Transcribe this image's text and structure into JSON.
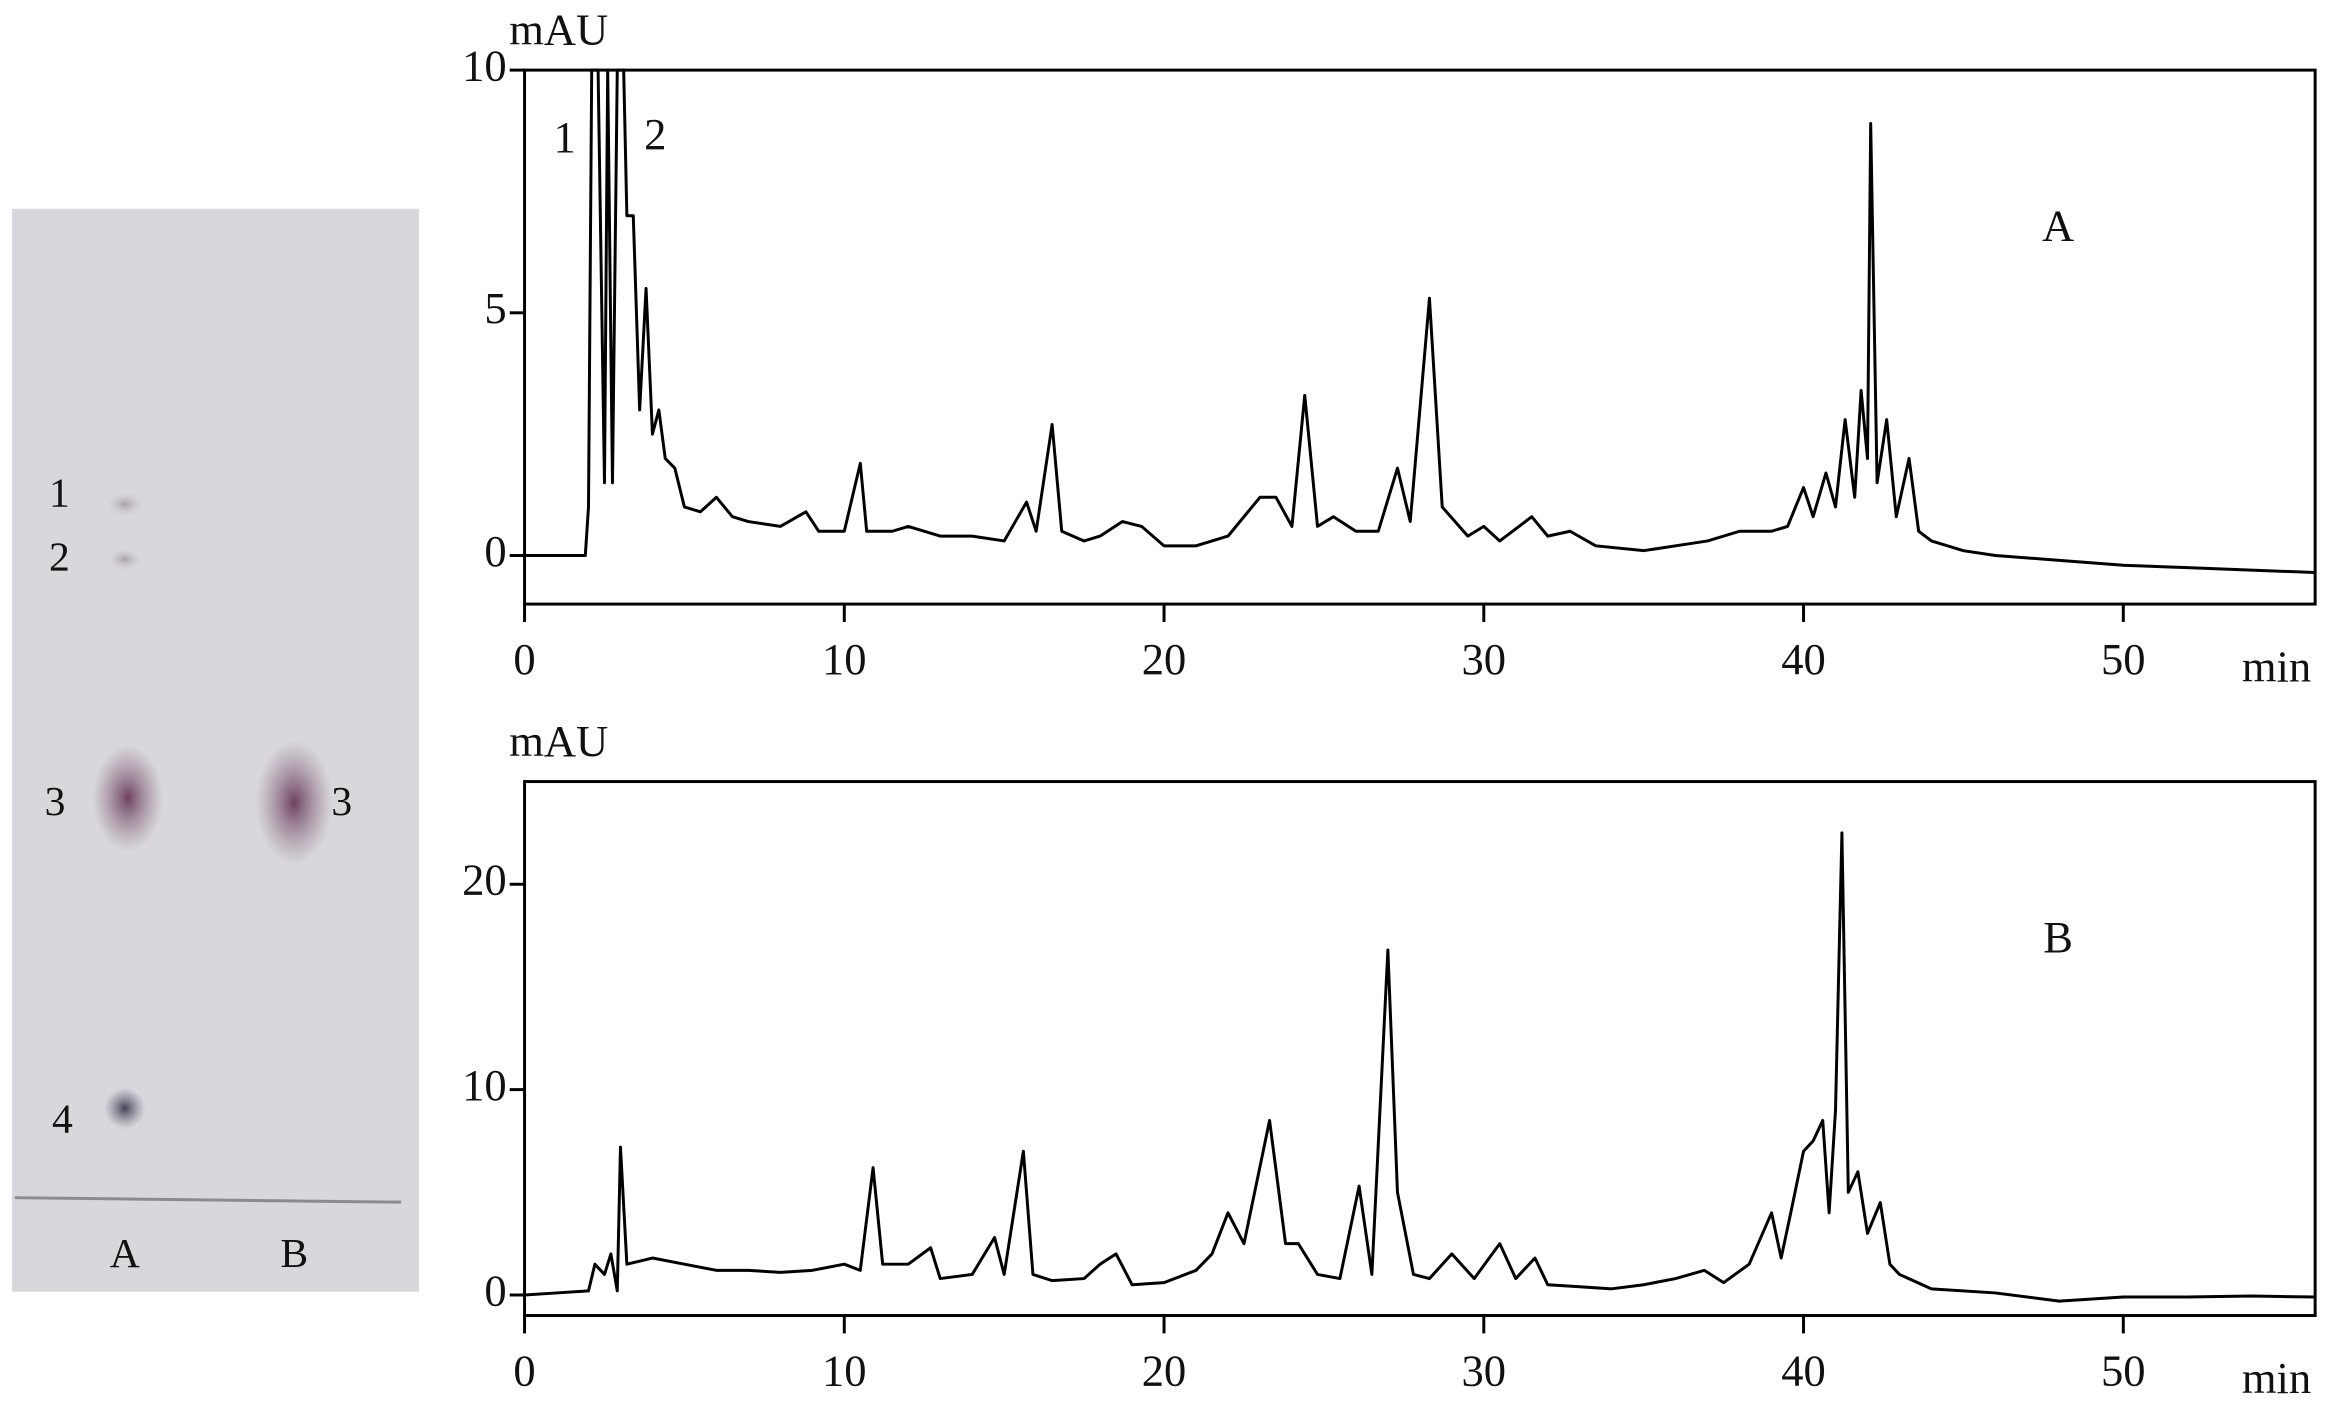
{
  "chart_data": [
    {
      "type": "line",
      "panel_label": "A",
      "y_label": "mAU",
      "x_label": "min",
      "annotations": [
        "1",
        "2"
      ],
      "color": "#000000",
      "xlim": [
        0,
        56
      ],
      "ylim": [
        -1,
        10
      ],
      "xticks": [
        0,
        10,
        20,
        30,
        40,
        50
      ],
      "yticks": [
        0,
        5,
        10
      ],
      "x": [
        0,
        1.9,
        2.0,
        2.1,
        2.3,
        2.5,
        2.6,
        2.75,
        2.9,
        3.1,
        3.2,
        3.4,
        3.6,
        3.8,
        4.0,
        4.2,
        4.4,
        4.7,
        5.0,
        5.5,
        6,
        6.5,
        7,
        8,
        8.8,
        9.2,
        10,
        10.5,
        10.7,
        11.5,
        12,
        13,
        14,
        15,
        15.7,
        16,
        16.5,
        16.8,
        17.5,
        18,
        18.7,
        19.3,
        20,
        21,
        22,
        23,
        23.5,
        24,
        24.4,
        24.8,
        25.3,
        26,
        26.7,
        27.3,
        27.7,
        28.3,
        28.7,
        29.5,
        30,
        30.5,
        31.5,
        32,
        32.7,
        33.5,
        35,
        36,
        37,
        38,
        39,
        39.5,
        40,
        40.3,
        40.7,
        41,
        41.3,
        41.6,
        41.8,
        42.0,
        42.1,
        42.3,
        42.6,
        42.9,
        43.3,
        43.6,
        44,
        45,
        46,
        48,
        50,
        52,
        54,
        56
      ],
      "values": [
        0,
        0,
        1,
        10,
        10,
        1.5,
        10,
        1.5,
        10,
        10,
        7,
        7,
        3,
        5.5,
        2.5,
        3,
        2,
        1.8,
        1,
        0.9,
        1.2,
        0.8,
        0.7,
        0.6,
        0.9,
        0.5,
        0.5,
        1.9,
        0.5,
        0.5,
        0.6,
        0.4,
        0.4,
        0.3,
        1.1,
        0.5,
        2.7,
        0.5,
        0.3,
        0.4,
        0.7,
        0.6,
        0.2,
        0.2,
        0.4,
        1.2,
        1.2,
        0.6,
        3.3,
        0.6,
        0.8,
        0.5,
        0.5,
        1.8,
        0.7,
        5.3,
        1.0,
        0.4,
        0.6,
        0.3,
        0.8,
        0.4,
        0.5,
        0.2,
        0.1,
        0.2,
        0.3,
        0.5,
        0.5,
        0.6,
        1.4,
        0.8,
        1.7,
        1.0,
        2.8,
        1.2,
        3.4,
        2.0,
        8.9,
        1.5,
        2.8,
        0.8,
        2.0,
        0.5,
        0.3,
        0.1,
        0.0,
        -0.1,
        -0.2,
        -0.25,
        -0.3,
        -0.35
      ]
    },
    {
      "type": "line",
      "panel_label": "B",
      "y_label": "mAU",
      "x_label": "min",
      "color": "#000000",
      "xlim": [
        0,
        56
      ],
      "ylim": [
        -1,
        25
      ],
      "xticks": [
        0,
        10,
        20,
        30,
        40,
        50
      ],
      "yticks": [
        0,
        10,
        20
      ],
      "x": [
        0,
        1,
        2,
        2.2,
        2.5,
        2.7,
        2.9,
        3.0,
        3.2,
        4,
        5,
        6,
        7,
        8,
        9,
        10,
        10.5,
        10.9,
        11.2,
        12,
        12.7,
        13,
        14,
        14.7,
        15,
        15.6,
        15.9,
        16.5,
        17.5,
        18,
        18.5,
        19,
        20,
        21,
        21.5,
        22,
        22.5,
        23.3,
        23.8,
        24.2,
        24.8,
        25.5,
        26.1,
        26.5,
        27.0,
        27.3,
        27.8,
        28.3,
        29,
        29.7,
        30.5,
        31,
        31.6,
        32,
        33,
        34,
        35,
        36,
        36.9,
        37.5,
        38.3,
        39,
        39.3,
        39.6,
        40,
        40.3,
        40.6,
        40.8,
        41.0,
        41.2,
        41.4,
        41.7,
        42,
        42.4,
        42.7,
        43,
        44,
        46,
        48,
        50,
        52,
        54,
        56
      ],
      "values": [
        0,
        0.1,
        0.2,
        1.5,
        1,
        2,
        0.2,
        7.2,
        1.5,
        1.8,
        1.5,
        1.2,
        1.2,
        1.1,
        1.2,
        1.5,
        1.2,
        6.2,
        1.5,
        1.5,
        2.3,
        0.8,
        1,
        2.8,
        1.0,
        7.0,
        1.0,
        0.7,
        0.8,
        1.5,
        2,
        0.5,
        0.6,
        1.2,
        2,
        4,
        2.5,
        8.5,
        2.5,
        2.5,
        1.0,
        0.8,
        5.3,
        1.0,
        16.8,
        5,
        1,
        0.8,
        2,
        0.8,
        2.5,
        0.8,
        1.8,
        0.5,
        0.4,
        0.3,
        0.5,
        0.8,
        1.2,
        0.6,
        1.5,
        4,
        1.8,
        4,
        7,
        7.5,
        8.5,
        4,
        9,
        22.5,
        5,
        6,
        3,
        4.5,
        1.5,
        1,
        0.3,
        0.1,
        -0.3,
        -0.1,
        -0.1,
        -0.05,
        -0.1
      ]
    }
  ],
  "plate": {
    "lane_a_spots": [
      "1",
      "2",
      "3",
      "4"
    ],
    "lane_b_spots": [
      "3"
    ],
    "lanes": [
      "A",
      "B"
    ]
  }
}
